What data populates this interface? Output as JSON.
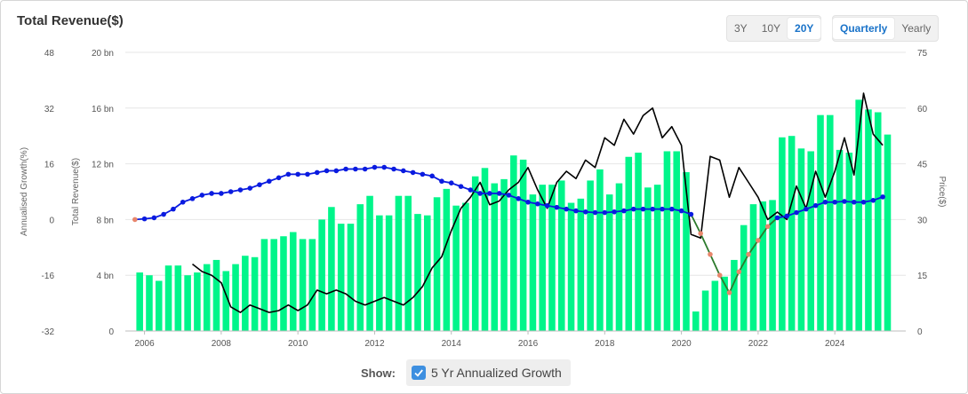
{
  "header": {
    "title": "Total Revenue($)"
  },
  "range_buttons": [
    {
      "label": "3Y",
      "active": false
    },
    {
      "label": "10Y",
      "active": false
    },
    {
      "label": "20Y",
      "active": true
    }
  ],
  "period_buttons": [
    {
      "label": "Quarterly",
      "active": true
    },
    {
      "label": "Yearly",
      "active": false
    }
  ],
  "footer": {
    "show_label": "Show:",
    "toggle_label": "5 Yr Annualized Growth",
    "toggle_checked": true
  },
  "chart_data": {
    "type": "bar",
    "x_ticks": [
      "2006",
      "2008",
      "2010",
      "2012",
      "2014",
      "2016",
      "2018",
      "2020",
      "2022",
      "2024"
    ],
    "axes": {
      "growth": {
        "label": "Annualised Growth(%)",
        "range": [
          -32,
          48
        ],
        "ticks": [
          "-32",
          "-16",
          "0",
          "16",
          "32",
          "48"
        ]
      },
      "revenue": {
        "label": "Total Revenue($)",
        "range": [
          0,
          20
        ],
        "ticks": [
          "0",
          "4 bn",
          "8 bn",
          "12 bn",
          "16 bn",
          "20 bn"
        ]
      },
      "price": {
        "label": "Price($)",
        "range": [
          0,
          75
        ],
        "ticks": [
          "0",
          "15",
          "30",
          "45",
          "60",
          "75"
        ]
      }
    },
    "colors": {
      "revenue_bar": "#00f58a",
      "price_line": "#000000",
      "growth_positive": "#0a1be0",
      "growth_negative": "#e8866c",
      "growth_negative_line": "#2c7a2c"
    },
    "series": [
      {
        "kind": "revenue",
        "quarters": [
          "2005Q4",
          "2006Q1",
          "2006Q2",
          "2006Q3",
          "2006Q4",
          "2007Q1",
          "2007Q2",
          "2007Q3",
          "2007Q4",
          "2008Q1",
          "2008Q2",
          "2008Q3",
          "2008Q4",
          "2009Q1",
          "2009Q2",
          "2009Q3",
          "2009Q4",
          "2010Q1",
          "2010Q2",
          "2010Q3",
          "2010Q4",
          "2011Q1",
          "2011Q2",
          "2011Q3",
          "2011Q4",
          "2012Q1",
          "2012Q2",
          "2012Q3",
          "2012Q4",
          "2013Q1",
          "2013Q2",
          "2013Q3",
          "2013Q4",
          "2014Q1",
          "2014Q2",
          "2014Q3",
          "2014Q4",
          "2015Q1",
          "2015Q2",
          "2015Q3",
          "2015Q4",
          "2016Q1",
          "2016Q2",
          "2016Q3",
          "2016Q4",
          "2017Q1",
          "2017Q2",
          "2017Q3",
          "2017Q4",
          "2018Q1",
          "2018Q2",
          "2018Q3",
          "2018Q4",
          "2019Q1",
          "2019Q2",
          "2019Q3",
          "2019Q4",
          "2020Q1",
          "2020Q2",
          "2020Q3",
          "2020Q4",
          "2021Q1",
          "2021Q2",
          "2021Q3",
          "2021Q4",
          "2022Q1",
          "2022Q2",
          "2022Q3",
          "2022Q4",
          "2023Q1",
          "2023Q2",
          "2023Q3",
          "2023Q4",
          "2024Q1",
          "2024Q2",
          "2024Q3",
          "2024Q4",
          "2025Q1",
          "2025Q2"
        ],
        "values": [
          4.2,
          4.0,
          3.6,
          4.7,
          4.7,
          4.0,
          4.2,
          4.8,
          5.1,
          4.3,
          4.8,
          5.4,
          5.3,
          6.6,
          6.6,
          6.8,
          7.1,
          6.6,
          6.6,
          8.0,
          8.9,
          7.7,
          7.7,
          9.1,
          9.7,
          8.3,
          8.3,
          9.7,
          9.7,
          8.4,
          8.3,
          9.6,
          10.2,
          9.0,
          9.2,
          11.1,
          11.7,
          10.6,
          10.9,
          12.6,
          12.3,
          9.8,
          10.5,
          10.5,
          10.8,
          9.2,
          9.5,
          10.8,
          11.6,
          9.8,
          10.6,
          12.5,
          12.8,
          10.3,
          10.5,
          12.9,
          12.9,
          11.4,
          1.4,
          2.9,
          3.6,
          3.9,
          5.1,
          7.6,
          9.1,
          9.3,
          9.4,
          13.9,
          14.0,
          13.1,
          12.9,
          15.5,
          15.5,
          13.0,
          12.8,
          16.6,
          15.9,
          15.7,
          14.1
        ]
      },
      {
        "kind": "price",
        "points": [
          [
            "2007-04",
            18
          ],
          [
            "2007-07",
            16
          ],
          [
            "2007-10",
            15
          ],
          [
            "2008-01",
            13
          ],
          [
            "2008-04",
            6.5
          ],
          [
            "2008-07",
            5
          ],
          [
            "2008-10",
            7
          ],
          [
            "2009-01",
            6
          ],
          [
            "2009-04",
            5
          ],
          [
            "2009-07",
            5.5
          ],
          [
            "2009-10",
            7
          ],
          [
            "2010-01",
            5.5
          ],
          [
            "2010-04",
            7
          ],
          [
            "2010-07",
            11
          ],
          [
            "2010-10",
            10
          ],
          [
            "2011-01",
            11
          ],
          [
            "2011-04",
            10
          ],
          [
            "2011-07",
            8
          ],
          [
            "2011-10",
            7
          ],
          [
            "2012-01",
            8
          ],
          [
            "2012-04",
            9
          ],
          [
            "2012-07",
            8
          ],
          [
            "2012-10",
            7
          ],
          [
            "2013-01",
            9
          ],
          [
            "2013-04",
            12
          ],
          [
            "2013-07",
            17
          ],
          [
            "2013-10",
            20
          ],
          [
            "2014-01",
            27
          ],
          [
            "2014-04",
            33
          ],
          [
            "2014-07",
            36
          ],
          [
            "2014-10",
            40
          ],
          [
            "2015-01",
            34
          ],
          [
            "2015-04",
            35
          ],
          [
            "2015-07",
            38
          ],
          [
            "2015-10",
            40
          ],
          [
            "2016-01",
            44
          ],
          [
            "2016-04",
            38
          ],
          [
            "2016-07",
            33
          ],
          [
            "2016-10",
            40
          ],
          [
            "2017-01",
            43
          ],
          [
            "2017-04",
            41
          ],
          [
            "2017-07",
            46
          ],
          [
            "2017-10",
            44
          ],
          [
            "2018-01",
            52
          ],
          [
            "2018-04",
            50
          ],
          [
            "2018-07",
            57
          ],
          [
            "2018-10",
            53
          ],
          [
            "2019-01",
            58
          ],
          [
            "2019-04",
            60
          ],
          [
            "2019-07",
            52
          ],
          [
            "2019-10",
            55
          ],
          [
            "2020-01",
            50
          ],
          [
            "2020-04",
            26
          ],
          [
            "2020-07",
            25
          ],
          [
            "2020-10",
            47
          ],
          [
            "2021-01",
            46
          ],
          [
            "2021-04",
            36
          ],
          [
            "2021-07",
            44
          ],
          [
            "2021-10",
            40
          ],
          [
            "2022-01",
            36
          ],
          [
            "2022-04",
            30
          ],
          [
            "2022-07",
            32
          ],
          [
            "2022-10",
            30
          ],
          [
            "2023-01",
            39
          ],
          [
            "2023-04",
            33
          ],
          [
            "2023-07",
            43
          ],
          [
            "2023-10",
            36
          ],
          [
            "2024-01",
            43
          ],
          [
            "2024-04",
            52
          ],
          [
            "2024-07",
            42
          ],
          [
            "2024-10",
            64
          ],
          [
            "2025-01",
            53
          ],
          [
            "2025-04",
            50
          ]
        ]
      },
      {
        "kind": "growth",
        "points": [
          [
            "2005-10",
            0
          ],
          [
            "2006-01",
            0.2
          ],
          [
            "2006-04",
            0.5
          ],
          [
            "2006-07",
            1.5
          ],
          [
            "2006-10",
            3
          ],
          [
            "2007-01",
            5
          ],
          [
            "2007-04",
            6
          ],
          [
            "2007-07",
            7
          ],
          [
            "2007-10",
            7.5
          ],
          [
            "2008-01",
            7.5
          ],
          [
            "2008-04",
            8
          ],
          [
            "2008-07",
            8.5
          ],
          [
            "2008-10",
            9
          ],
          [
            "2009-01",
            10
          ],
          [
            "2009-04",
            11
          ],
          [
            "2009-07",
            12
          ],
          [
            "2009-10",
            13
          ],
          [
            "2010-01",
            13
          ],
          [
            "2010-04",
            13
          ],
          [
            "2010-07",
            13.5
          ],
          [
            "2010-10",
            14
          ],
          [
            "2011-01",
            14
          ],
          [
            "2011-04",
            14.5
          ],
          [
            "2011-07",
            14.5
          ],
          [
            "2011-10",
            14.5
          ],
          [
            "2012-01",
            15
          ],
          [
            "2012-04",
            15
          ],
          [
            "2012-07",
            14.5
          ],
          [
            "2012-10",
            14
          ],
          [
            "2013-01",
            13.5
          ],
          [
            "2013-04",
            13
          ],
          [
            "2013-07",
            12.5
          ],
          [
            "2013-10",
            11
          ],
          [
            "2014-01",
            10.5
          ],
          [
            "2014-04",
            9.5
          ],
          [
            "2014-07",
            8.5
          ],
          [
            "2014-10",
            7.5
          ],
          [
            "2015-01",
            7.5
          ],
          [
            "2015-04",
            7.5
          ],
          [
            "2015-07",
            7
          ],
          [
            "2015-10",
            6
          ],
          [
            "2016-01",
            5
          ],
          [
            "2016-04",
            4.5
          ],
          [
            "2016-07",
            4
          ],
          [
            "2016-10",
            3.5
          ],
          [
            "2017-01",
            3
          ],
          [
            "2017-04",
            2.5
          ],
          [
            "2017-07",
            2.2
          ],
          [
            "2017-10",
            2
          ],
          [
            "2018-01",
            2
          ],
          [
            "2018-04",
            2.2
          ],
          [
            "2018-07",
            2.5
          ],
          [
            "2018-10",
            3
          ],
          [
            "2019-01",
            3
          ],
          [
            "2019-04",
            3
          ],
          [
            "2019-07",
            3
          ],
          [
            "2019-10",
            3
          ],
          [
            "2020-01",
            2.5
          ],
          [
            "2020-04",
            1.5
          ],
          [
            "2020-07",
            -4
          ],
          [
            "2020-10",
            -10
          ],
          [
            "2021-01",
            -16
          ],
          [
            "2021-04",
            -21
          ],
          [
            "2021-07",
            -15
          ],
          [
            "2021-10",
            -10
          ],
          [
            "2022-01",
            -6
          ],
          [
            "2022-04",
            -2
          ],
          [
            "2022-07",
            0.5
          ],
          [
            "2022-10",
            1
          ],
          [
            "2023-01",
            2
          ],
          [
            "2023-04",
            3
          ],
          [
            "2023-07",
            4
          ],
          [
            "2023-10",
            5
          ],
          [
            "2024-01",
            5
          ],
          [
            "2024-04",
            5.2
          ],
          [
            "2024-07",
            5
          ],
          [
            "2024-10",
            5
          ],
          [
            "2025-01",
            5.5
          ],
          [
            "2025-04",
            6.5
          ]
        ]
      }
    ]
  }
}
